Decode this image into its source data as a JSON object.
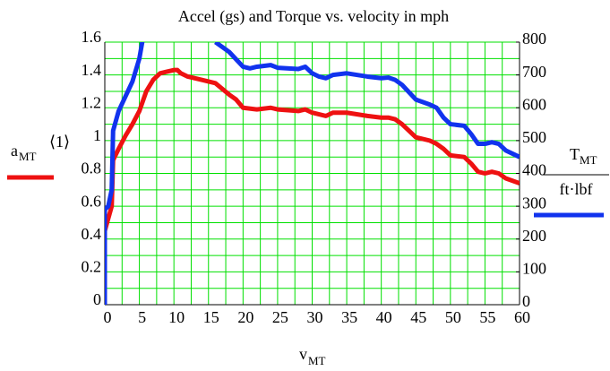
{
  "chart_data": {
    "type": "line",
    "title": "Accel (gs) and Torque vs. velocity in mph",
    "x_label": {
      "main": "v",
      "sub": "MT"
    },
    "y_label": {
      "main": "a",
      "sub": "MT",
      "sup": "⟨1⟩"
    },
    "y2_label": {
      "num_main": "T",
      "num_sub": "MT",
      "den": "ft·lbf"
    },
    "xlim": [
      0,
      60
    ],
    "xticks": [
      0,
      5,
      10,
      15,
      20,
      25,
      30,
      35,
      40,
      45,
      50,
      55,
      60
    ],
    "ylim": [
      0,
      1.6
    ],
    "yticks": [
      0,
      0.2,
      0.4,
      0.6,
      0.8,
      1,
      1.2,
      1.4,
      1.6
    ],
    "y2lim": [
      0,
      800
    ],
    "y2ticks": [
      0,
      100,
      200,
      300,
      400,
      500,
      600,
      700,
      800
    ],
    "grid": true,
    "grid_color": "#00e000",
    "series": [
      {
        "color": "#ee1111",
        "x": [
          0,
          1,
          1.2,
          2,
          3,
          4,
          5,
          6,
          7,
          8,
          9,
          10,
          10.5,
          11,
          12,
          14,
          16,
          18,
          19,
          20,
          22,
          24,
          25,
          28,
          29,
          30,
          32,
          33,
          35,
          38,
          40,
          41,
          42,
          43,
          45,
          47,
          48,
          49,
          50,
          52,
          53,
          54,
          55,
          56,
          57,
          58,
          60
        ],
        "values": [
          0.45,
          0.6,
          0.88,
          0.95,
          1.03,
          1.1,
          1.18,
          1.3,
          1.37,
          1.41,
          1.42,
          1.43,
          1.43,
          1.41,
          1.39,
          1.37,
          1.35,
          1.28,
          1.25,
          1.2,
          1.19,
          1.2,
          1.19,
          1.18,
          1.19,
          1.17,
          1.15,
          1.17,
          1.17,
          1.15,
          1.14,
          1.14,
          1.13,
          1.1,
          1.02,
          1.0,
          0.98,
          0.95,
          0.91,
          0.9,
          0.86,
          0.81,
          0.8,
          0.81,
          0.8,
          0.77,
          0.74
        ]
      },
      {
        "color": "#1133ee",
        "axis": "y2",
        "x": [
          0,
          0,
          0.5,
          1,
          1.2,
          2,
          4,
          5,
          5.5,
          10,
          16,
          18,
          20,
          21,
          22,
          24,
          25,
          28,
          29,
          30,
          31,
          32,
          33,
          35,
          38,
          40,
          41,
          42,
          43,
          45,
          47,
          48,
          49,
          50,
          52,
          53,
          54,
          55,
          56,
          57,
          58,
          60
        ],
        "values": [
          0,
          290,
          300,
          350,
          530,
          590,
          680,
          750,
          810,
          null,
          800,
          770,
          725,
          720,
          725,
          730,
          722,
          718,
          725,
          705,
          695,
          690,
          700,
          705,
          695,
          690,
          692,
          685,
          670,
          625,
          610,
          600,
          570,
          550,
          545,
          520,
          490,
          490,
          495,
          490,
          470,
          450
        ]
      }
    ]
  }
}
